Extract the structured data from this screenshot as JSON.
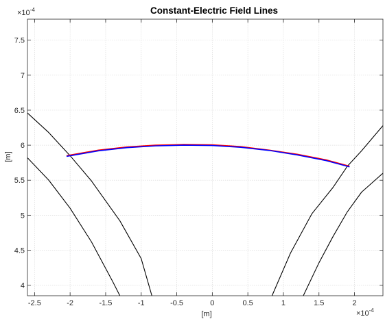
{
  "chart_data": {
    "type": "line",
    "title": "Constant-Electric Field Lines",
    "xlabel": "[m]",
    "ylabel": "[m]",
    "x_exponent": "×10",
    "x_exponent_power": "-4",
    "y_exponent": "×10",
    "y_exponent_power": "-4",
    "xlim": [
      -0.00026,
      0.00024
    ],
    "ylim": [
      0.000385,
      0.00078
    ],
    "grid": true,
    "x_ticks": [
      {
        "value": -0.00025,
        "label": "-2.5"
      },
      {
        "value": -0.0002,
        "label": "-2"
      },
      {
        "value": -0.00015,
        "label": "-1.5"
      },
      {
        "value": -0.0001,
        "label": "-1"
      },
      {
        "value": -5e-05,
        "label": "-0.5"
      },
      {
        "value": 0,
        "label": "0"
      },
      {
        "value": 5e-05,
        "label": "0.5"
      },
      {
        "value": 0.0001,
        "label": "1"
      },
      {
        "value": 0.00015,
        "label": "1.5"
      },
      {
        "value": 0.0002,
        "label": "2"
      }
    ],
    "y_ticks": [
      {
        "value": 0.0004,
        "label": "4"
      },
      {
        "value": 0.00045,
        "label": "4.5"
      },
      {
        "value": 0.0005,
        "label": "5"
      },
      {
        "value": 0.00055,
        "label": "5.5"
      },
      {
        "value": 0.0006,
        "label": "6"
      },
      {
        "value": 0.00065,
        "label": "6.5"
      },
      {
        "value": 0.0007,
        "label": "7"
      },
      {
        "value": 0.00075,
        "label": "7.5"
      }
    ],
    "series": [
      {
        "color": "#000000",
        "x": [
          -0.00026,
          -0.00023,
          -0.0002,
          -0.00017,
          -0.00014,
          -0.00013
        ],
        "y": [
          0.000582,
          0.00055,
          0.00051,
          0.000462,
          0.000405,
          0.000385
        ]
      },
      {
        "color": "#000000",
        "x": [
          -0.00026,
          -0.00023,
          -0.0002,
          -0.00017,
          -0.00013,
          -0.0001,
          -8.5e-05
        ],
        "y": [
          0.000646,
          0.000618,
          0.000585,
          0.000549,
          0.000492,
          0.000438,
          0.000385
        ]
      },
      {
        "color": "#000000",
        "x": [
          8.4e-05,
          0.00011,
          0.00014,
          0.00017,
          0.00019,
          0.00021,
          0.00024
        ],
        "y": [
          0.000385,
          0.000446,
          0.000502,
          0.00054,
          0.00057,
          0.000592,
          0.000628
        ]
      },
      {
        "color": "#000000",
        "x": [
          0.000128,
          0.00015,
          0.00017,
          0.00019,
          0.00021,
          0.00024
        ],
        "y": [
          0.000385,
          0.000432,
          0.00047,
          0.000505,
          0.000533,
          0.00056
        ]
      },
      {
        "color": "#ff0000",
        "x": [
          -0.000205,
          -0.00016,
          -0.00012,
          -8e-05,
          -4e-05,
          0,
          4e-05,
          8e-05,
          0.00012,
          0.00016,
          0.000193
        ],
        "y": [
          0.000585,
          0.000593,
          0.0005975,
          0.0006,
          0.000601,
          0.0006005,
          0.000598,
          0.000593,
          0.000587,
          0.000579,
          0.00057
        ]
      },
      {
        "color": "#0000ff",
        "x": [
          -0.000205,
          -0.00016,
          -0.00012,
          -8e-05,
          -4e-05,
          0,
          4e-05,
          8e-05,
          0.00012,
          0.00016,
          0.000193
        ],
        "y": [
          0.000584,
          0.000592,
          0.0005965,
          0.000599,
          0.0006,
          0.0005995,
          0.000597,
          0.0005925,
          0.000586,
          0.000578,
          0.000569
        ]
      }
    ]
  }
}
